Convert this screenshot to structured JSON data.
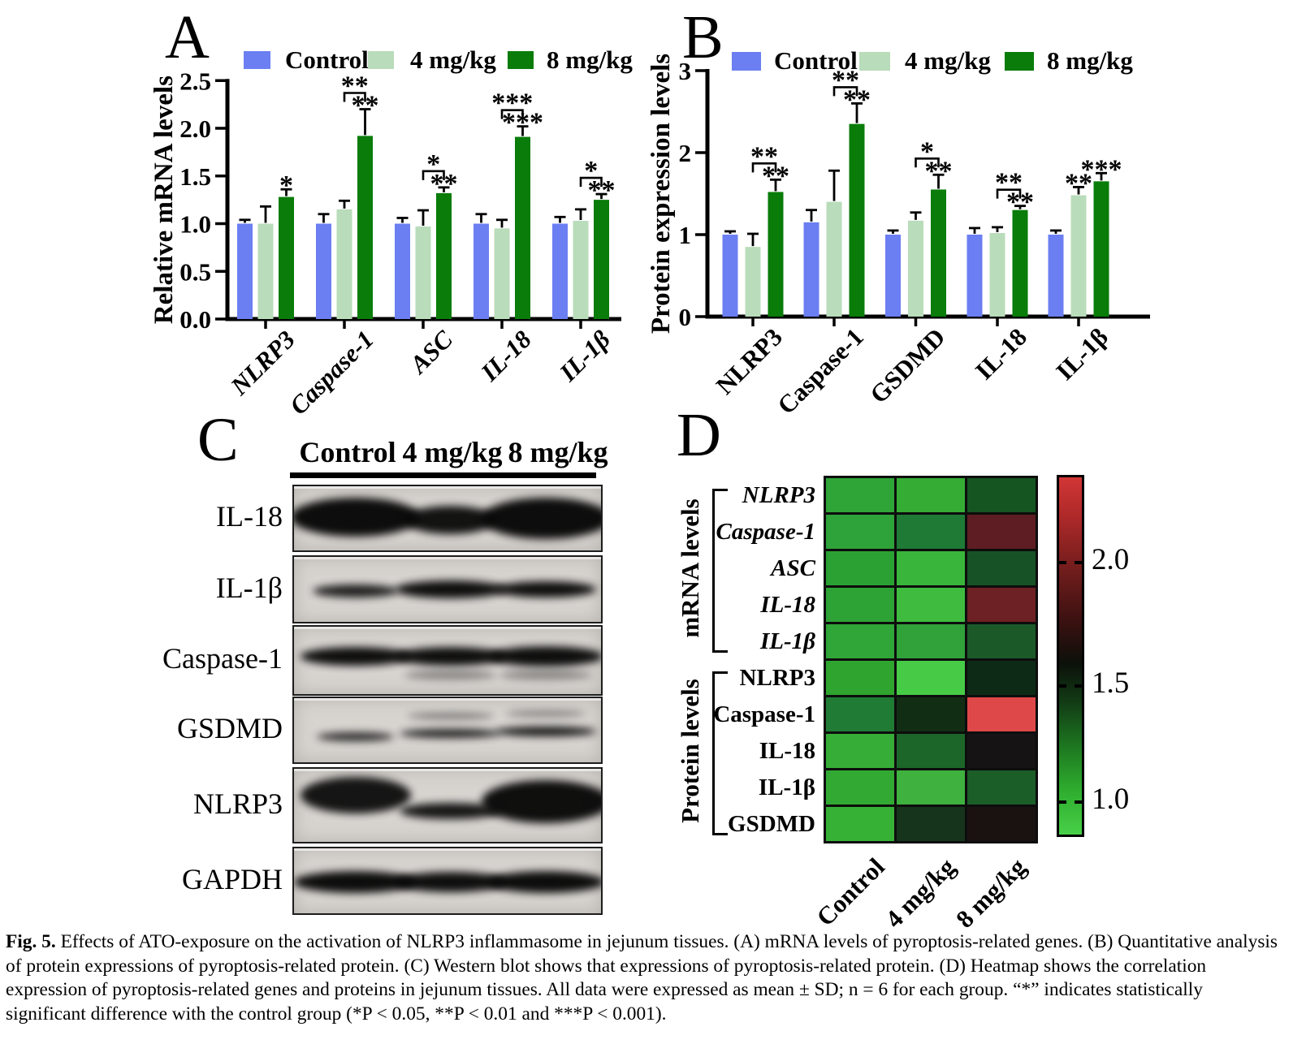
{
  "figure": {
    "panels": {
      "a": {
        "label": "A",
        "ylabel": "Relative mRNA levels",
        "legend": [
          {
            "label": "Control",
            "color": "#6b7ff2"
          },
          {
            "label": "4 mg/kg",
            "color": "#b9dcba"
          },
          {
            "label": "8 mg/kg",
            "color": "#097c09"
          }
        ]
      },
      "b": {
        "label": "B",
        "ylabel": "Protein expression levels",
        "legend": [
          {
            "label": "Control",
            "color": "#6b7ff2"
          },
          {
            "label": "4 mg/kg",
            "color": "#b9dcba"
          },
          {
            "label": "8 mg/kg",
            "color": "#097c09"
          }
        ]
      },
      "c": {
        "label": "C",
        "col_headers": [
          "Control",
          "4 mg/kg",
          "8 mg/kg"
        ],
        "rows": [
          {
            "label": "IL-18",
            "bands": [
              [
                0,
                0.42,
                0.6,
                0.97,
                -0.02
              ],
              [
                1,
                0.3,
                0.44,
                0.94,
                0.03
              ],
              [
                2,
                0.42,
                0.64,
                0.97,
                0.0
              ]
            ]
          },
          {
            "label": "IL-1β",
            "bands": [
              [
                0,
                0.28,
                0.2,
                0.88,
                0.02
              ],
              [
                1,
                0.36,
                0.27,
                0.96,
                0.0
              ],
              [
                2,
                0.33,
                0.25,
                0.96,
                0.0
              ]
            ]
          },
          {
            "label": "Caspase-1",
            "bands": [
              [
                0,
                0.36,
                0.27,
                0.96,
                -0.06
              ],
              [
                1,
                0.36,
                0.27,
                0.96,
                -0.06
              ],
              [
                2,
                0.37,
                0.29,
                0.96,
                -0.06
              ],
              [
                1,
                0.3,
                0.13,
                0.4,
                0.22
              ],
              [
                2,
                0.3,
                0.13,
                0.4,
                0.22
              ]
            ]
          },
          {
            "label": "GSDMD",
            "bands": [
              [
                0,
                0.25,
                0.14,
                0.82,
                0.1
              ],
              [
                1,
                0.33,
                0.14,
                0.88,
                0.05
              ],
              [
                2,
                0.33,
                0.16,
                0.92,
                0.02
              ],
              [
                1,
                0.28,
                0.1,
                0.45,
                -0.22
              ],
              [
                2,
                0.26,
                0.1,
                0.4,
                -0.26
              ]
            ]
          },
          {
            "label": "NLRP3",
            "bands": [
              [
                0,
                0.36,
                0.5,
                0.93,
                -0.14
              ],
              [
                1,
                0.33,
                0.22,
                0.92,
                0.08
              ],
              [
                2,
                0.42,
                0.58,
                0.96,
                -0.05
              ]
            ]
          },
          {
            "label": "GAPDH",
            "bands": [
              [
                0,
                0.4,
                0.33,
                0.97,
                0.02
              ],
              [
                1,
                0.37,
                0.31,
                0.96,
                0.02
              ],
              [
                2,
                0.38,
                0.33,
                0.97,
                0.02
              ]
            ]
          }
        ]
      },
      "d": {
        "label": "D",
        "row_groups": [
          {
            "label": "mRNA levels",
            "italic": true,
            "rows": [
              "NLRP3",
              "Caspase-1",
              "ASC",
              "IL-18",
              "IL-1β"
            ]
          },
          {
            "label": "Protein levels",
            "italic": false,
            "rows": [
              "NLRP3",
              "Caspase-1",
              "IL-18",
              "IL-1β",
              "GSDMD"
            ]
          }
        ],
        "col_labels": [
          "Control",
          "4 mg/kg",
          "8 mg/kg"
        ],
        "colorbar": {
          "tick_labels": [
            "2.0",
            "1.5",
            "1.0"
          ]
        }
      }
    },
    "caption": {
      "label": "Fig. 5.",
      "text": "Effects of ATO-exposure on the activation of NLRP3 inflammasome in jejunum tissues. (A) mRNA levels of pyroptosis-related genes. (B) Quantitative analysis of protein expressions of pyroptosis-related protein. (C) Western blot shows that expressions of pyroptosis-related protein. (D) Heatmap shows the correlation expression of pyroptosis-related genes and proteins in jejunum tissues. All data were expressed as mean ± SD; n = 6 for each group. “*” indicates statistically significant difference with the control group (*P < 0.05, **P < 0.01 and ***P < 0.001)."
    }
  },
  "chart_data": [
    {
      "id": "panel_a",
      "type": "bar",
      "title": "",
      "xlabel": "",
      "ylabel": "Relative mRNA levels",
      "ylim": [
        0,
        2.5
      ],
      "ytick_values": [
        0,
        0.5,
        1.0,
        1.5,
        2.0,
        2.5
      ],
      "yticks": [
        "0.0",
        "0.5",
        "1.0",
        "1.5",
        "2.0",
        "2.5"
      ],
      "categories": [
        "NLRP3",
        "Caspase-1",
        "ASC",
        "IL-18",
        "IL-1β"
      ],
      "italic_categories": true,
      "legend_position": "top",
      "grid": false,
      "series": [
        {
          "name": "Control",
          "color": "#6b7ff2",
          "values": [
            1.0,
            1.0,
            1.0,
            1.0,
            1.0
          ],
          "errors": [
            0.04,
            0.1,
            0.06,
            0.1,
            0.07
          ]
        },
        {
          "name": "4 mg/kg",
          "color": "#b9dcba",
          "values": [
            1.0,
            1.15,
            0.97,
            0.95,
            1.03
          ],
          "errors": [
            0.18,
            0.09,
            0.17,
            0.09,
            0.12
          ]
        },
        {
          "name": "8 mg/kg",
          "color": "#097c09",
          "values": [
            1.28,
            1.92,
            1.32,
            1.91,
            1.25
          ],
          "errors": [
            0.08,
            0.28,
            0.06,
            0.11,
            0.06
          ]
        }
      ],
      "significance": [
        {
          "above_8": "*"
        },
        {
          "bracket": "**",
          "above_8": "**"
        },
        {
          "bracket": "*",
          "above_8": "**"
        },
        {
          "bracket": "***",
          "above_8": "***"
        },
        {
          "bracket": "*",
          "above_8": "**"
        }
      ]
    },
    {
      "id": "panel_b",
      "type": "bar",
      "title": "",
      "xlabel": "",
      "ylabel": "Protein expression levels",
      "ylim": [
        0,
        3
      ],
      "ytick_values": [
        0,
        1,
        2,
        3
      ],
      "yticks": [
        "0",
        "1",
        "2",
        "3"
      ],
      "categories": [
        "NLRP3",
        "Caspase-1",
        "GSDMD",
        "IL-18",
        "IL-1β"
      ],
      "italic_categories": false,
      "legend_position": "top",
      "grid": false,
      "series": [
        {
          "name": "Control",
          "color": "#6b7ff2",
          "values": [
            1.0,
            1.15,
            1.0,
            1.0,
            1.0
          ],
          "errors": [
            0.04,
            0.15,
            0.05,
            0.08,
            0.05
          ]
        },
        {
          "name": "4 mg/kg",
          "color": "#b9dcba",
          "values": [
            0.85,
            1.4,
            1.17,
            1.02,
            1.48
          ],
          "errors": [
            0.16,
            0.38,
            0.1,
            0.07,
            0.1
          ]
        },
        {
          "name": "8 mg/kg",
          "color": "#097c09",
          "values": [
            1.52,
            2.35,
            1.55,
            1.3,
            1.65
          ],
          "errors": [
            0.15,
            0.25,
            0.18,
            0.05,
            0.1
          ]
        }
      ],
      "significance": [
        {
          "bracket": "**",
          "above_8": "**"
        },
        {
          "bracket": "**",
          "above_8": "**"
        },
        {
          "bracket": "*",
          "above_8": "**"
        },
        {
          "bracket": "**",
          "above_8": "**"
        },
        {
          "above_4": "**",
          "above_8": "***"
        }
      ]
    },
    {
      "id": "panel_d",
      "type": "heatmap",
      "columns": [
        "Control",
        "4 mg/kg",
        "8 mg/kg"
      ],
      "row_labels": [
        "NLRP3 (mRNA)",
        "Caspase-1 (mRNA)",
        "ASC (mRNA)",
        "IL-18 (mRNA)",
        "IL-1β (mRNA)",
        "NLRP3 (protein)",
        "Caspase-1 (protein)",
        "IL-18 (protein)",
        "IL-1β (protein)",
        "GSDMD (protein)"
      ],
      "cell_colors": [
        [
          "#2fa437",
          "#35ad35",
          "#155522"
        ],
        [
          "#2ea339",
          "#1f7a36",
          "#5e1d22"
        ],
        [
          "#2ba133",
          "#38b53a",
          "#175226"
        ],
        [
          "#2da335",
          "#3fbc3f",
          "#6e2125"
        ],
        [
          "#2fa637",
          "#31a13a",
          "#1b5a28"
        ],
        [
          "#2fa52f",
          "#47cb47",
          "#0d2a16"
        ],
        [
          "#207c35",
          "#112e14",
          "#de4848"
        ],
        [
          "#36ad36",
          "#1d6629",
          "#151313"
        ],
        [
          "#32a932",
          "#3eb13e",
          "#1b5e28"
        ],
        [
          "#36b136",
          "#16331b",
          "#1a1211"
        ]
      ],
      "approx_values": [
        [
          1.0,
          1.0,
          1.3
        ],
        [
          1.0,
          1.15,
          1.92
        ],
        [
          1.0,
          0.97,
          1.32
        ],
        [
          1.0,
          0.95,
          1.91
        ],
        [
          1.0,
          1.03,
          1.25
        ],
        [
          1.0,
          0.85,
          1.52
        ],
        [
          1.15,
          1.4,
          2.35
        ],
        [
          1.0,
          1.1,
          1.5
        ],
        [
          1.0,
          1.05,
          1.3
        ],
        [
          1.0,
          1.48,
          1.55
        ]
      ],
      "colorbar": {
        "tick_values": [
          2.0,
          1.5,
          1.0
        ],
        "range": [
          0.85,
          2.35
        ],
        "top_color": "#d23636",
        "mid_color": "#0c100a",
        "bottom_color": "#48d048"
      }
    }
  ]
}
